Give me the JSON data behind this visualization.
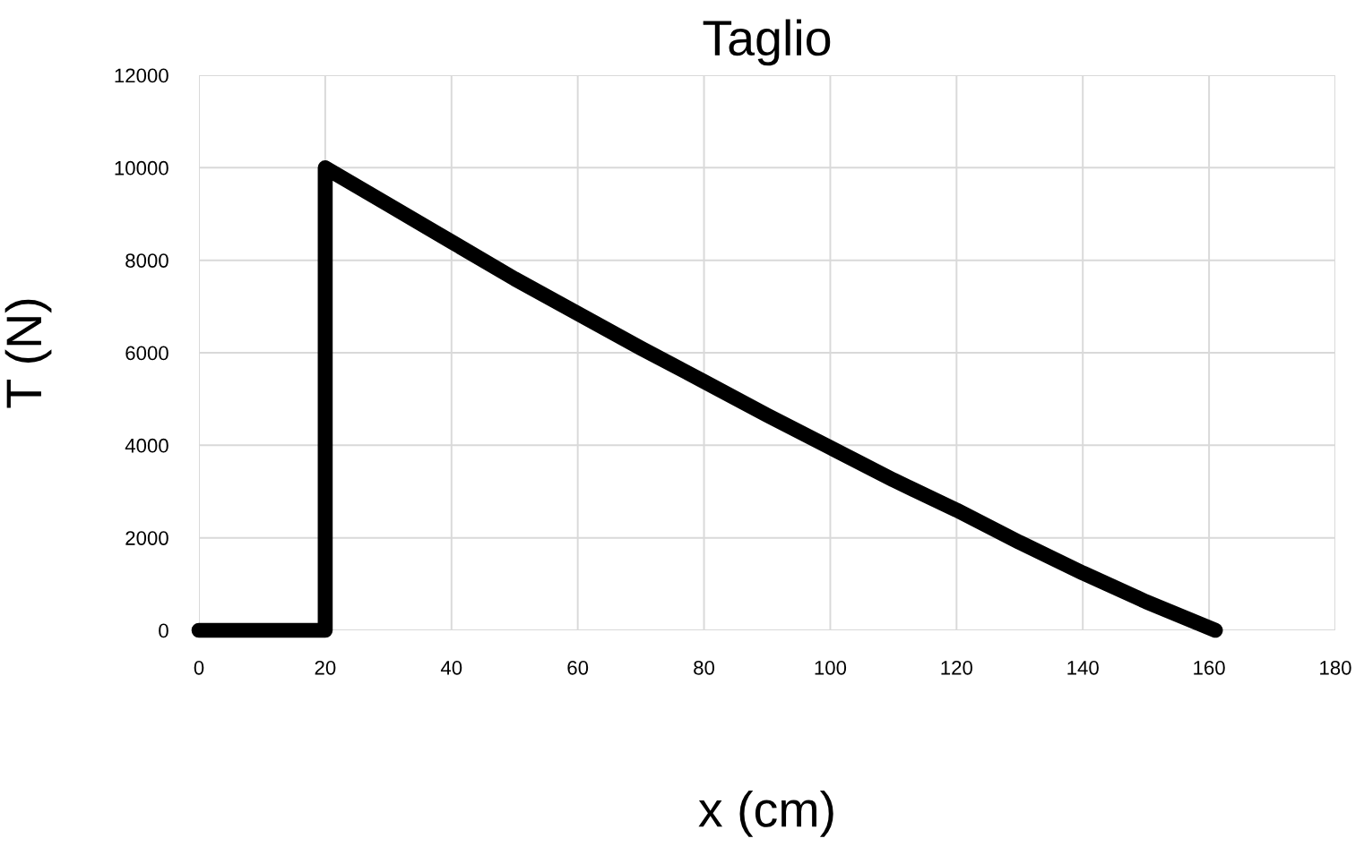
{
  "chart_data": {
    "type": "line",
    "title": "Taglio",
    "xlabel": "x (cm)",
    "ylabel": "T (N)",
    "x": [
      0,
      20,
      20,
      30,
      40,
      50,
      60,
      70,
      80,
      90,
      100,
      110,
      120,
      130,
      140,
      150,
      161
    ],
    "series": [
      {
        "color": "#000000",
        "values": [
          0,
          0,
          10000,
          9200,
          8400,
          7600,
          6850,
          6100,
          5380,
          4650,
          3950,
          3250,
          2600,
          1900,
          1240,
          620,
          0
        ]
      }
    ],
    "xlim": [
      0,
      180
    ],
    "xticks": [
      0,
      20,
      40,
      60,
      80,
      100,
      120,
      140,
      160,
      180
    ],
    "ylim": [
      0,
      12000
    ],
    "yticks": [
      0,
      2000,
      4000,
      6000,
      8000,
      10000,
      12000
    ],
    "grid": true,
    "marker": "none",
    "line_style": "solid",
    "legend": false
  }
}
